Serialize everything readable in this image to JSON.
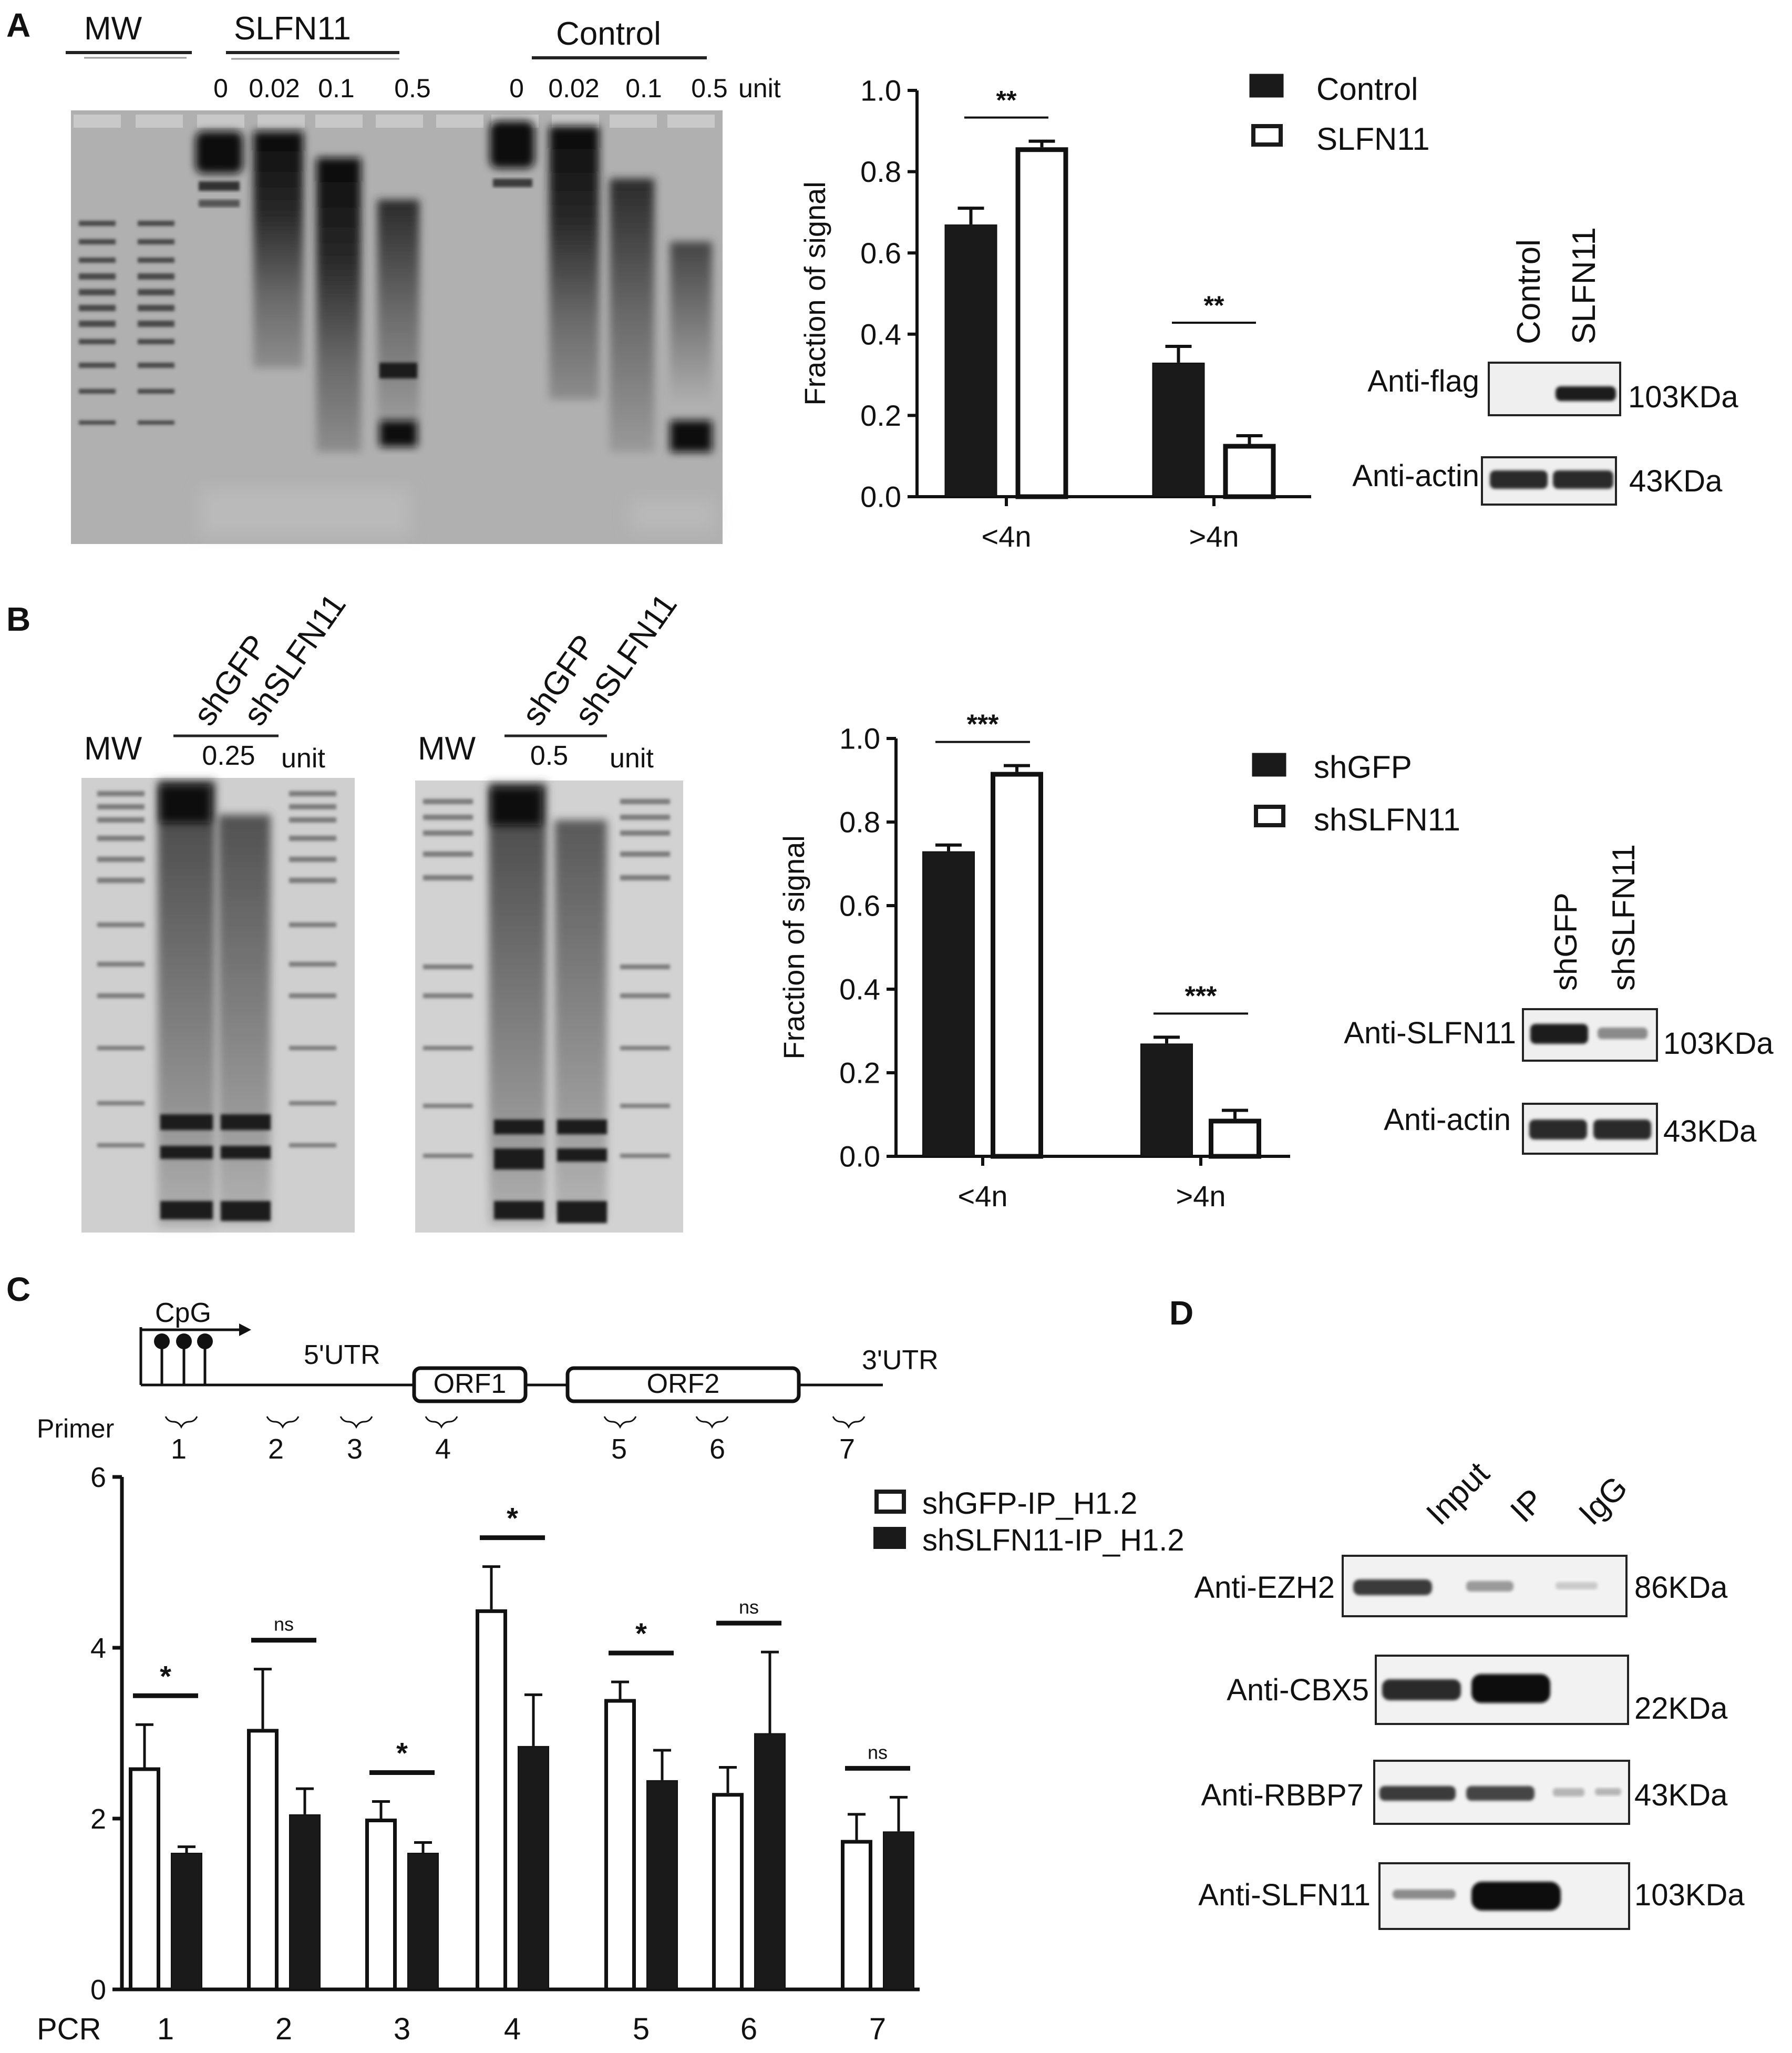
{
  "panel_letters": {
    "a": "A",
    "b": "B",
    "c": "C",
    "d": "D"
  },
  "panel_a": {
    "gel_header": {
      "mw": "MW",
      "group1": "SLFN11",
      "group2": "Control"
    },
    "doses": [
      "0",
      "0.02",
      "0.1",
      "0.5",
      "0",
      "0.02",
      "0.1",
      "0.5"
    ],
    "unit": "unit",
    "blot": {
      "lanes": [
        "Control",
        "SLFN11"
      ],
      "rows": [
        {
          "label": "Anti-flag",
          "size": "103KDa"
        },
        {
          "label": "Anti-actin",
          "size": "43KDa"
        }
      ]
    }
  },
  "panel_b": {
    "gel1": {
      "mw": "MW",
      "lanes": [
        "shGFP",
        "shSLFN11"
      ],
      "dose": "0.25",
      "unit": "unit"
    },
    "gel2": {
      "mw": "MW",
      "lanes": [
        "shGFP",
        "shSLFN11"
      ],
      "dose": "0.5",
      "unit": "unit"
    },
    "blot": {
      "lanes": [
        "shGFP",
        "shSLFN11"
      ],
      "rows": [
        {
          "label": "Anti-SLFN11",
          "size": "103KDa"
        },
        {
          "label": "Anti-actin",
          "size": "43KDa"
        }
      ]
    }
  },
  "panel_c": {
    "gene": {
      "cpg": "CpG",
      "utr5": "5'UTR",
      "orf1": "ORF1",
      "orf2": "ORF2",
      "utr3": "3'UTR",
      "primer_label": "Primer",
      "primers": [
        "1",
        "2",
        "3",
        "4",
        "5",
        "6",
        "7"
      ]
    },
    "xaxis_prefix": "PCR"
  },
  "panel_d": {
    "lanes": [
      "Input",
      "IP",
      "IgG"
    ],
    "rows": [
      {
        "label": "Anti-EZH2",
        "size": "86KDa"
      },
      {
        "label": "Anti-CBX5",
        "size": "22KDa"
      },
      {
        "label": "Anti-RBBP7",
        "size": "43KDa"
      },
      {
        "label": "Anti-SLFN11",
        "size": "103KDa"
      }
    ]
  },
  "chart_data": [
    {
      "type": "bar",
      "id": "A",
      "categories": [
        "<4n",
        ">4n"
      ],
      "ylabel": "Fraction of signal",
      "ylim": [
        0,
        1.0
      ],
      "yticks": [
        "0.0",
        "0.2",
        "0.4",
        "0.6",
        "0.8",
        "1.0"
      ],
      "legend": "top-right",
      "series": [
        {
          "name": "Control",
          "fill": "#1a1a1a",
          "values": [
            0.67,
            0.33
          ],
          "errors": [
            0.04,
            0.04
          ]
        },
        {
          "name": "SLFN11",
          "fill": "#ffffff",
          "values": [
            0.86,
            0.13
          ],
          "errors": [
            0.015,
            0.02
          ]
        }
      ],
      "significance": [
        "**",
        "**"
      ]
    },
    {
      "type": "bar",
      "id": "B",
      "categories": [
        "<4n",
        ">4n"
      ],
      "ylabel": "Fraction of signal",
      "ylim": [
        0,
        1.0
      ],
      "yticks": [
        "0.0",
        "0.2",
        "0.4",
        "0.6",
        "0.8",
        "1.0"
      ],
      "legend": "top-right",
      "series": [
        {
          "name": "shGFP",
          "fill": "#1a1a1a",
          "values": [
            0.73,
            0.27
          ],
          "errors": [
            0.015,
            0.015
          ]
        },
        {
          "name": "shSLFN11",
          "fill": "#ffffff",
          "values": [
            0.92,
            0.09
          ],
          "errors": [
            0.015,
            0.02
          ]
        }
      ],
      "significance": [
        "***",
        "***"
      ]
    },
    {
      "type": "bar",
      "id": "C",
      "categories": [
        "1",
        "2",
        "3",
        "4",
        "5",
        "6",
        "7"
      ],
      "ylim": [
        0,
        6
      ],
      "yticks": [
        "0",
        "2",
        "4",
        "6"
      ],
      "legend": "top-right",
      "series": [
        {
          "name": "shGFP-IP_H1.2",
          "fill": "#ffffff",
          "values": [
            2.6,
            3.05,
            2.0,
            4.45,
            3.4,
            2.3,
            1.75
          ],
          "errors": [
            0.5,
            0.7,
            0.2,
            0.5,
            0.2,
            0.3,
            0.3
          ]
        },
        {
          "name": "shSLFN11-IP_H1.2",
          "fill": "#1a1a1a",
          "values": [
            1.6,
            2.05,
            1.6,
            2.85,
            2.45,
            3.0,
            1.85
          ],
          "errors": [
            0.07,
            0.3,
            0.12,
            0.6,
            0.35,
            0.95,
            0.4
          ]
        }
      ],
      "significance": [
        "*",
        "ns",
        "*",
        "*",
        "*",
        "ns",
        "ns"
      ]
    }
  ]
}
